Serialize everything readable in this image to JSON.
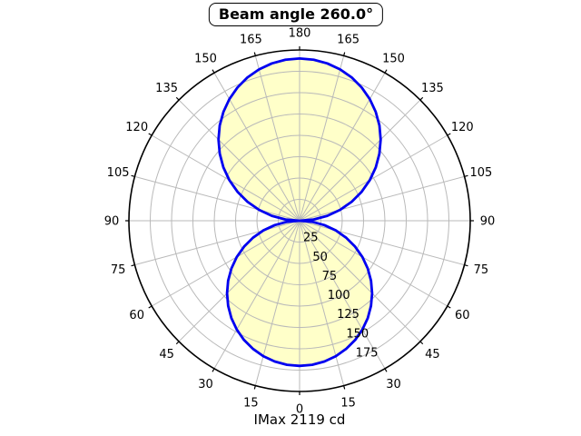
{
  "title": "Beam angle 260.0°",
  "footer": "IMax 2119 cd",
  "chart_data": {
    "type": "polar",
    "title": "Beam angle 260.0°",
    "beam_angle_deg": 260.0,
    "imax_cd": 2119,
    "imax_label": "IMax 2119 cd",
    "rmax": 200,
    "radial_ticks": [
      25,
      50,
      75,
      100,
      125,
      150,
      175
    ],
    "angular_ticks_deg": [
      0,
      15,
      30,
      45,
      60,
      75,
      90,
      105,
      120,
      135,
      150,
      165,
      180
    ],
    "angular_tick_step_deg": 15,
    "radial_label_angle_deg": 26,
    "grid": true,
    "series": [
      {
        "name": "luminous-intensity",
        "symmetric": true,
        "angles_deg": [
          0,
          5,
          10,
          15,
          20,
          25,
          30,
          35,
          40,
          45,
          50,
          55,
          60,
          65,
          70,
          75,
          80,
          85,
          90,
          95,
          100,
          105,
          110,
          115,
          120,
          125,
          130,
          135,
          140,
          145,
          150,
          155,
          160,
          165,
          170,
          175,
          180
        ],
        "values": [
          170.0,
          169.4,
          167.4,
          164.2,
          159.7,
          154.1,
          147.2,
          139.3,
          130.2,
          120.2,
          109.3,
          97.5,
          85.0,
          71.8,
          58.1,
          44.0,
          29.5,
          14.8,
          0.0,
          16.6,
          33.0,
          49.2,
          65.0,
          80.3,
          95.0,
          109.0,
          122.1,
          134.4,
          145.6,
          155.6,
          164.5,
          172.2,
          178.6,
          183.5,
          187.1,
          189.3,
          190.0
        ]
      }
    ],
    "colors": {
      "fill": "#ffffc9",
      "stroke": "#0000f0",
      "grid": "#b9b9b9",
      "axis": "#000000",
      "background": "#ffffff"
    }
  }
}
